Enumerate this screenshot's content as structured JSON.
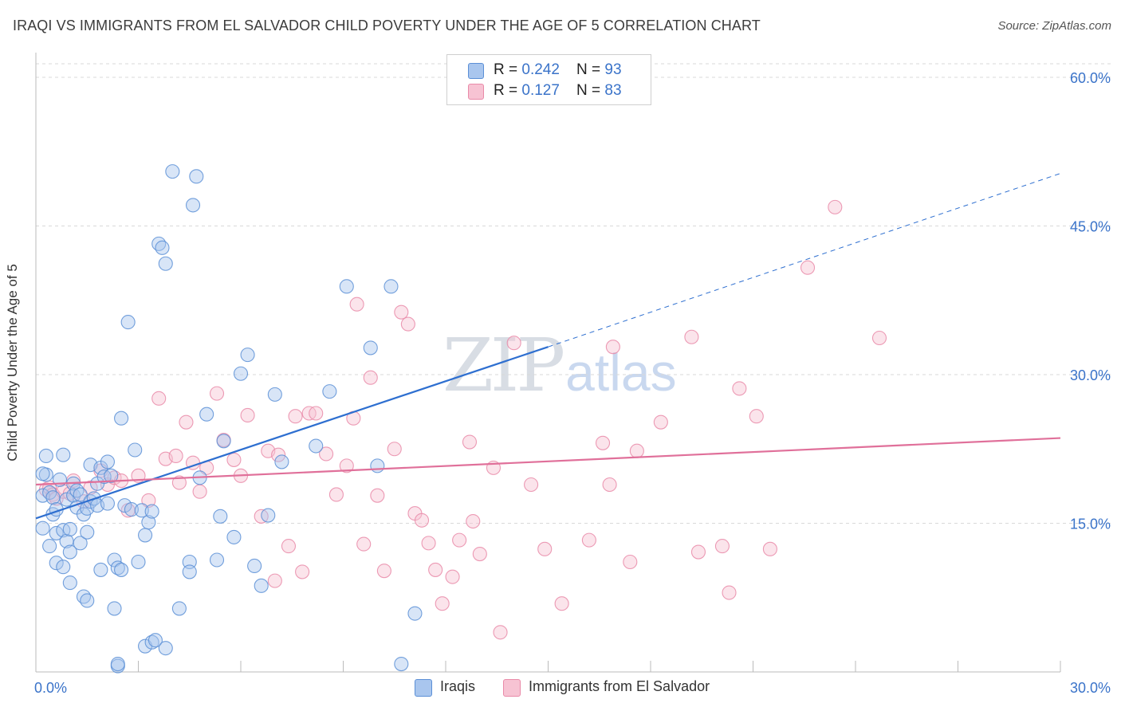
{
  "title": "IRAQI VS IMMIGRANTS FROM EL SALVADOR CHILD POVERTY UNDER THE AGE OF 5 CORRELATION CHART",
  "source": "Source: ZipAtlas.com",
  "watermark": {
    "zip": "ZIP",
    "atlas": "atlas"
  },
  "legend_top": [
    {
      "r_label": "R = ",
      "r_value": "0.242",
      "n_label": "N = ",
      "n_value": "93"
    },
    {
      "r_label": "R = ",
      "r_value": " 0.127",
      "n_label": "N = ",
      "n_value": "83"
    }
  ],
  "legend_bottom": [
    "Iraqis",
    "Immigrants from El Salvador"
  ],
  "colors": {
    "blue_fill": "#a9c6ee",
    "blue_stroke": "#5b8fd6",
    "blue_line": "#2e6fd0",
    "pink_fill": "#f7c3d3",
    "pink_stroke": "#e98aa8",
    "pink_line": "#e0709a",
    "grid": "#d9d9d9",
    "tick_label": "#3a73c9"
  },
  "chart_data": {
    "type": "scatter",
    "title": "IRAQI VS IMMIGRANTS FROM EL SALVADOR CHILD POVERTY UNDER THE AGE OF 5 CORRELATION CHART",
    "xlabel": "",
    "ylabel": "Child Poverty Under the Age of 5",
    "xlim": [
      0,
      30
    ],
    "ylim": [
      0,
      60
    ],
    "x_tick_labels": [
      "0.0%",
      "30.0%"
    ],
    "y_tick_labels": [
      "15.0%",
      "30.0%",
      "45.0%",
      "60.0%"
    ],
    "y_ticks": [
      15,
      30,
      45,
      60
    ],
    "grid": true,
    "series": [
      {
        "name": "Iraqis",
        "color": "blue",
        "points": [
          [
            0.2,
            17.8
          ],
          [
            0.3,
            19.9
          ],
          [
            0.4,
            18.1
          ],
          [
            0.5,
            17.6
          ],
          [
            0.5,
            15.9
          ],
          [
            0.6,
            14.0
          ],
          [
            0.6,
            16.4
          ],
          [
            0.7,
            19.4
          ],
          [
            0.8,
            14.3
          ],
          [
            0.8,
            21.9
          ],
          [
            0.9,
            17.4
          ],
          [
            0.9,
            13.2
          ],
          [
            1.0,
            12.1
          ],
          [
            1.0,
            14.4
          ],
          [
            1.1,
            19.0
          ],
          [
            1.1,
            17.8
          ],
          [
            1.2,
            16.6
          ],
          [
            1.2,
            18.3
          ],
          [
            1.3,
            13.0
          ],
          [
            1.3,
            17.9
          ],
          [
            1.4,
            15.9
          ],
          [
            1.5,
            16.5
          ],
          [
            1.5,
            14.1
          ],
          [
            1.6,
            17.2
          ],
          [
            1.6,
            20.9
          ],
          [
            1.7,
            17.5
          ],
          [
            1.8,
            16.8
          ],
          [
            1.8,
            19.0
          ],
          [
            1.9,
            20.6
          ],
          [
            2.0,
            19.7
          ],
          [
            2.1,
            17.0
          ],
          [
            2.1,
            21.2
          ],
          [
            2.2,
            19.8
          ],
          [
            2.3,
            11.3
          ],
          [
            2.4,
            10.5
          ],
          [
            2.5,
            10.3
          ],
          [
            2.5,
            25.6
          ],
          [
            2.6,
            16.8
          ],
          [
            2.7,
            35.3
          ],
          [
            2.8,
            16.4
          ],
          [
            2.9,
            22.4
          ],
          [
            3.0,
            11.1
          ],
          [
            3.1,
            16.3
          ],
          [
            3.2,
            13.8
          ],
          [
            3.2,
            2.6
          ],
          [
            3.3,
            15.1
          ],
          [
            3.4,
            16.2
          ],
          [
            3.6,
            43.2
          ],
          [
            3.7,
            42.8
          ],
          [
            3.8,
            41.2
          ],
          [
            3.4,
            3.0
          ],
          [
            3.5,
            3.2
          ],
          [
            4.0,
            50.5
          ],
          [
            4.2,
            6.4
          ],
          [
            4.5,
            11.1
          ],
          [
            4.5,
            10.1
          ],
          [
            4.6,
            47.1
          ],
          [
            4.7,
            50.0
          ],
          [
            4.8,
            19.6
          ],
          [
            5.0,
            26.0
          ],
          [
            5.3,
            11.3
          ],
          [
            5.4,
            15.7
          ],
          [
            5.5,
            23.3
          ],
          [
            5.8,
            13.6
          ],
          [
            6.0,
            30.1
          ],
          [
            6.2,
            32.0
          ],
          [
            6.4,
            10.7
          ],
          [
            6.6,
            8.7
          ],
          [
            6.8,
            15.8
          ],
          [
            7.2,
            21.2
          ],
          [
            0.3,
            21.8
          ],
          [
            0.4,
            12.7
          ],
          [
            0.6,
            11.0
          ],
          [
            0.8,
            10.6
          ],
          [
            1.0,
            9.0
          ],
          [
            1.4,
            7.6
          ],
          [
            1.5,
            7.2
          ],
          [
            1.9,
            10.3
          ],
          [
            2.3,
            6.4
          ],
          [
            2.4,
            0.6
          ],
          [
            2.4,
            0.8
          ],
          [
            3.8,
            2.4
          ],
          [
            7.0,
            28.0
          ],
          [
            8.2,
            22.8
          ],
          [
            8.6,
            28.3
          ],
          [
            9.8,
            32.7
          ],
          [
            10.0,
            20.8
          ],
          [
            10.4,
            38.9
          ],
          [
            9.1,
            38.9
          ],
          [
            10.7,
            0.8
          ],
          [
            11.1,
            5.9
          ],
          [
            0.2,
            14.5
          ],
          [
            0.2,
            20.0
          ]
        ]
      },
      {
        "name": "Immigrants from El Salvador",
        "color": "pink",
        "points": [
          [
            0.3,
            18.4
          ],
          [
            0.4,
            18.6
          ],
          [
            0.5,
            17.9
          ],
          [
            0.6,
            17.5
          ],
          [
            0.8,
            18.2
          ],
          [
            1.0,
            18.0
          ],
          [
            1.1,
            19.3
          ],
          [
            1.4,
            17.2
          ],
          [
            1.6,
            18.6
          ],
          [
            1.9,
            20.3
          ],
          [
            2.1,
            18.9
          ],
          [
            2.3,
            19.6
          ],
          [
            2.5,
            19.3
          ],
          [
            2.7,
            16.3
          ],
          [
            3.0,
            19.8
          ],
          [
            3.3,
            17.3
          ],
          [
            3.6,
            27.6
          ],
          [
            3.8,
            21.5
          ],
          [
            4.1,
            21.8
          ],
          [
            4.2,
            19.1
          ],
          [
            4.4,
            25.2
          ],
          [
            4.6,
            21.1
          ],
          [
            4.8,
            18.2
          ],
          [
            5.0,
            20.6
          ],
          [
            5.3,
            28.1
          ],
          [
            5.5,
            23.4
          ],
          [
            5.8,
            21.4
          ],
          [
            6.0,
            19.8
          ],
          [
            6.2,
            25.9
          ],
          [
            6.6,
            15.7
          ],
          [
            6.8,
            22.3
          ],
          [
            7.1,
            21.9
          ],
          [
            7.4,
            12.7
          ],
          [
            7.6,
            25.8
          ],
          [
            7.8,
            10.1
          ],
          [
            8.0,
            26.1
          ],
          [
            8.2,
            26.1
          ],
          [
            8.5,
            22.0
          ],
          [
            8.8,
            17.9
          ],
          [
            9.1,
            20.8
          ],
          [
            9.3,
            25.6
          ],
          [
            9.4,
            37.1
          ],
          [
            9.6,
            12.9
          ],
          [
            9.8,
            29.7
          ],
          [
            10.0,
            17.8
          ],
          [
            10.2,
            10.2
          ],
          [
            10.5,
            22.5
          ],
          [
            10.7,
            36.3
          ],
          [
            10.9,
            35.1
          ],
          [
            11.1,
            16.0
          ],
          [
            11.3,
            15.3
          ],
          [
            11.5,
            13.0
          ],
          [
            11.7,
            10.3
          ],
          [
            11.9,
            6.9
          ],
          [
            12.2,
            9.6
          ],
          [
            12.4,
            13.3
          ],
          [
            12.8,
            15.2
          ],
          [
            13.0,
            11.9
          ],
          [
            13.4,
            20.6
          ],
          [
            13.6,
            4.0
          ],
          [
            14.0,
            33.2
          ],
          [
            14.5,
            18.9
          ],
          [
            14.9,
            12.4
          ],
          [
            15.4,
            6.9
          ],
          [
            16.2,
            13.3
          ],
          [
            16.6,
            23.1
          ],
          [
            16.8,
            18.9
          ],
          [
            16.9,
            32.8
          ],
          [
            17.4,
            11.1
          ],
          [
            17.6,
            22.3
          ],
          [
            18.3,
            25.2
          ],
          [
            19.2,
            33.8
          ],
          [
            19.4,
            12.1
          ],
          [
            20.1,
            12.7
          ],
          [
            20.3,
            8.0
          ],
          [
            20.6,
            28.6
          ],
          [
            21.1,
            25.8
          ],
          [
            21.5,
            12.4
          ],
          [
            22.6,
            40.8
          ],
          [
            23.4,
            46.9
          ],
          [
            24.7,
            33.7
          ],
          [
            12.7,
            23.2
          ],
          [
            7.0,
            9.2
          ]
        ]
      }
    ],
    "trend_lines": [
      {
        "series": "Iraqis",
        "x": [
          0.0,
          15.0
        ],
        "y": [
          15.5,
          32.8
        ],
        "style": "solid"
      },
      {
        "series": "Iraqis",
        "x": [
          15.0,
          30.0
        ],
        "y": [
          32.8,
          50.3
        ],
        "style": "dashed"
      },
      {
        "series": "Immigrants from El Salvador",
        "x": [
          0.0,
          30.0
        ],
        "y": [
          18.9,
          23.6
        ],
        "style": "solid"
      }
    ]
  }
}
